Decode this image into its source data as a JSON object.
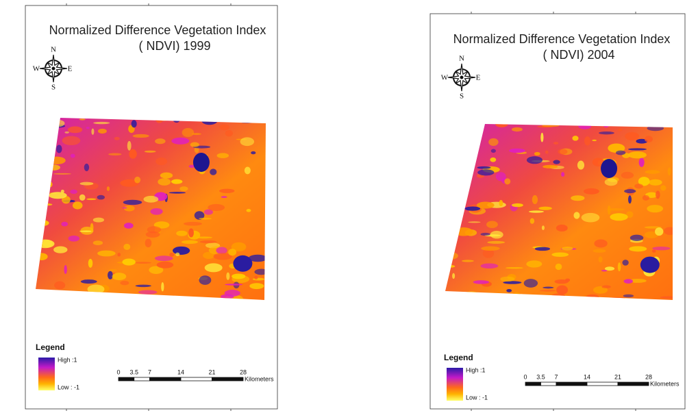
{
  "maps": [
    {
      "title": [
        "Normalized Difference Vegetation Index",
        "( NDVI) 1999"
      ],
      "compass": {
        "n": "N",
        "s": "S",
        "e": "E",
        "w": "W"
      },
      "legend": {
        "title": "Legend",
        "high": "High :1",
        "low": "Low : -1"
      },
      "scale_bar": {
        "ticks": [
          0,
          3.5,
          7,
          14,
          21,
          28
        ],
        "unit": "Kilometers"
      }
    },
    {
      "title": [
        "Normalized Difference Vegetation Index",
        "( NDVI) 2004"
      ],
      "compass": {
        "n": "N",
        "s": "S",
        "e": "E",
        "w": "W"
      },
      "legend": {
        "title": "Legend",
        "high": "High :1",
        "low": "Low : -1"
      },
      "scale_bar": {
        "ticks": [
          0,
          3.5,
          7,
          14,
          21,
          28
        ],
        "unit": "Kilometers"
      }
    }
  ]
}
